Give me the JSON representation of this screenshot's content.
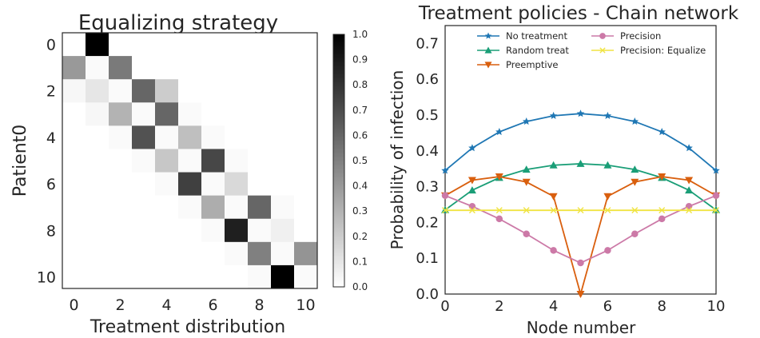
{
  "chart_data": [
    {
      "type": "heatmap",
      "title": "Equalizing strategy",
      "xlabel": "Treatment distribution",
      "ylabel": "Patient0",
      "x_ticks": [
        "0",
        "2",
        "4",
        "6",
        "8",
        "10"
      ],
      "y_ticks": [
        "0",
        "2",
        "4",
        "6",
        "8",
        "10"
      ],
      "colormap": "Greys",
      "vmin": 0.0,
      "vmax": 1.0,
      "colorbar_ticks": [
        "0.0",
        "0.1",
        "0.2",
        "0.3",
        "0.4",
        "0.5",
        "0.6",
        "0.7",
        "0.8",
        "0.9",
        "1.0"
      ],
      "grid": false,
      "values": [
        [
          0,
          1.0,
          0,
          0,
          0,
          0,
          0,
          0,
          0,
          0,
          0
        ],
        [
          0.4,
          0.02,
          0.52,
          0,
          0,
          0,
          0,
          0,
          0,
          0,
          0
        ],
        [
          0.03,
          0.1,
          0.02,
          0.6,
          0.2,
          0,
          0,
          0,
          0,
          0,
          0
        ],
        [
          0,
          0.03,
          0.3,
          0.02,
          0.6,
          0.02,
          0,
          0,
          0,
          0,
          0
        ],
        [
          0,
          0,
          0.02,
          0.68,
          0.02,
          0.25,
          0.02,
          0,
          0,
          0,
          0
        ],
        [
          0,
          0,
          0,
          0.02,
          0.22,
          0.02,
          0.72,
          0.02,
          0,
          0,
          0
        ],
        [
          0,
          0,
          0,
          0,
          0.02,
          0.75,
          0.02,
          0.15,
          0,
          0,
          0
        ],
        [
          0,
          0,
          0,
          0,
          0,
          0.02,
          0.32,
          0.02,
          0.6,
          0.02,
          0
        ],
        [
          0,
          0,
          0,
          0,
          0,
          0,
          0.02,
          0.88,
          0.02,
          0.06,
          0
        ],
        [
          0,
          0,
          0,
          0,
          0,
          0,
          0,
          0.02,
          0.5,
          0.02,
          0.42
        ],
        [
          0,
          0,
          0,
          0,
          0,
          0,
          0,
          0,
          0.02,
          1.0,
          0.02
        ]
      ]
    },
    {
      "type": "line",
      "title": "Treatment policies - Chain network",
      "xlabel": "Node number",
      "ylabel": "Probability of infection",
      "xlim": [
        0,
        10
      ],
      "ylim": [
        0,
        0.75
      ],
      "x_ticks": [
        "0",
        "2",
        "4",
        "6",
        "8",
        "10"
      ],
      "y_ticks": [
        "0.0",
        "0.1",
        "0.2",
        "0.3",
        "0.4",
        "0.5",
        "0.6",
        "0.7"
      ],
      "grid": false,
      "legend_position": "top",
      "x": [
        0,
        1,
        2,
        3,
        4,
        5,
        6,
        7,
        8,
        9,
        10
      ],
      "series": [
        {
          "name": "No treatment",
          "color": "#1f77b4",
          "marker": "star",
          "values": [
            0.345,
            0.408,
            0.453,
            0.482,
            0.498,
            0.504,
            0.498,
            0.482,
            0.453,
            0.408,
            0.345
          ]
        },
        {
          "name": "Random treat",
          "color": "#1a9e77",
          "marker": "triangle-up",
          "values": [
            0.235,
            0.29,
            0.325,
            0.348,
            0.36,
            0.364,
            0.36,
            0.348,
            0.325,
            0.29,
            0.235
          ]
        },
        {
          "name": "Preemptive",
          "color": "#d95f0e",
          "marker": "triangle-down",
          "values": [
            0.275,
            0.318,
            0.328,
            0.313,
            0.273,
            0.0,
            0.273,
            0.313,
            0.328,
            0.318,
            0.275
          ]
        },
        {
          "name": "Precision",
          "color": "#cc79a7",
          "marker": "circle",
          "values": [
            0.275,
            0.245,
            0.21,
            0.168,
            0.122,
            0.087,
            0.122,
            0.168,
            0.21,
            0.245,
            0.275
          ]
        },
        {
          "name": "Precision: Equalize",
          "color": "#f0e442",
          "marker": "x",
          "values": [
            0.234,
            0.234,
            0.234,
            0.234,
            0.234,
            0.234,
            0.234,
            0.234,
            0.234,
            0.234,
            0.234
          ]
        }
      ]
    }
  ]
}
